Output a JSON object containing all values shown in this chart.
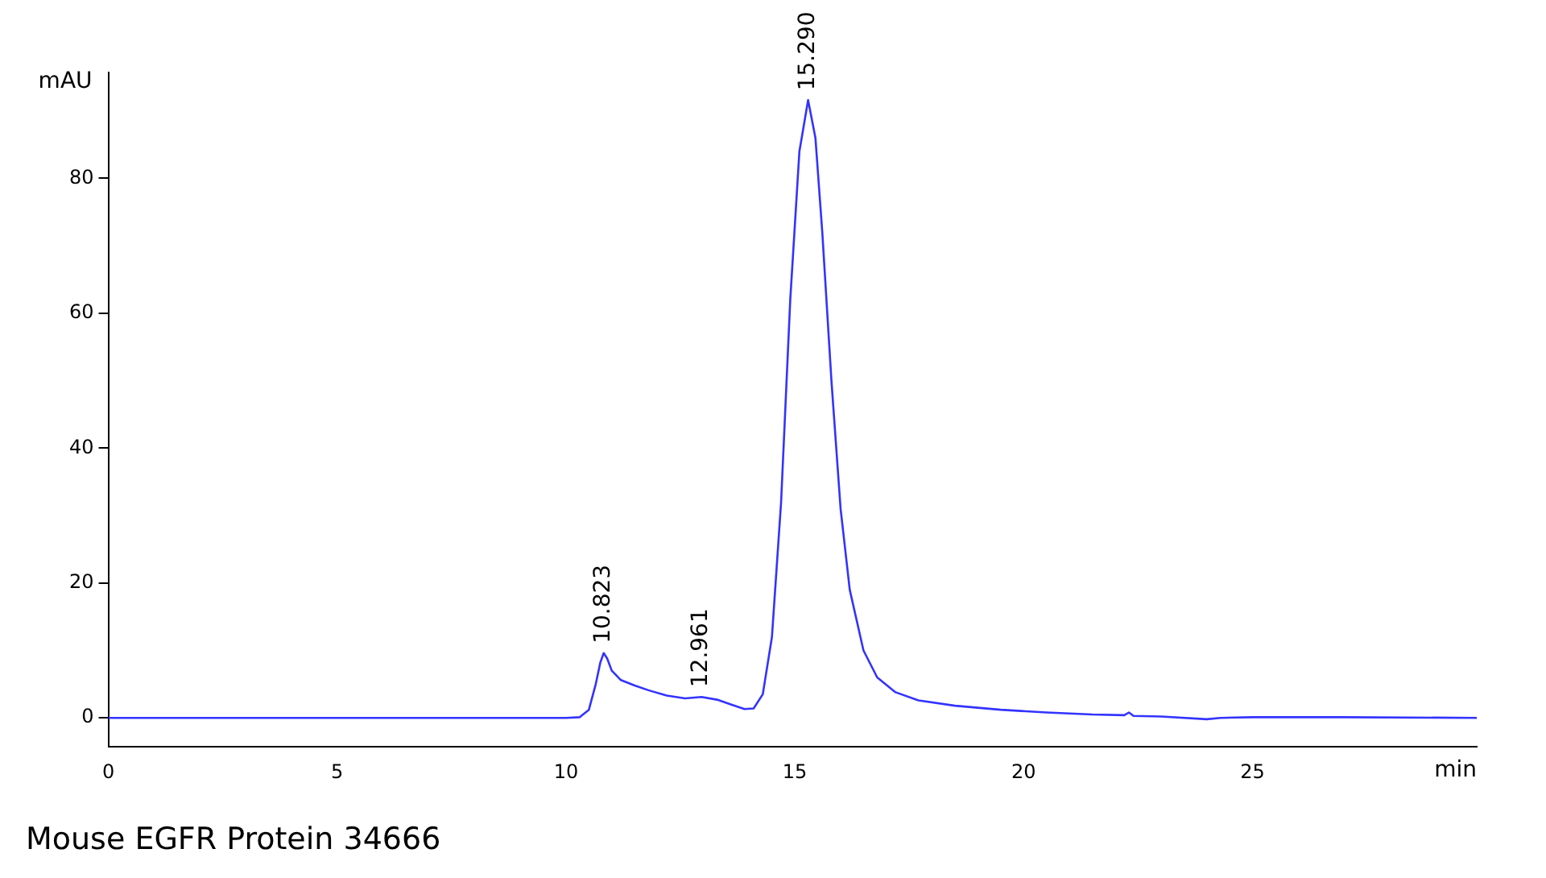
{
  "chart_data": {
    "type": "line",
    "xlabel": "min",
    "ylabel": "mAU",
    "xlim": [
      0,
      29.9
    ],
    "ylim": [
      -4.3,
      95.7
    ],
    "xticks": [
      0,
      5,
      10,
      15,
      20,
      25
    ],
    "yticks": [
      0,
      20,
      40,
      60,
      80
    ],
    "grid": false,
    "legend": false,
    "marker": "none",
    "line_style": "solid",
    "series": [
      {
        "color": "#3333ff",
        "x": [
          0,
          5,
          10,
          10.3,
          10.5,
          10.65,
          10.75,
          10.823,
          10.9,
          11.0,
          11.2,
          11.5,
          11.8,
          12.2,
          12.6,
          12.961,
          13.3,
          13.6,
          13.9,
          14.1,
          14.3,
          14.5,
          14.7,
          14.9,
          15.1,
          15.29,
          15.45,
          15.6,
          15.8,
          16.0,
          16.2,
          16.5,
          16.8,
          17.2,
          17.7,
          18.5,
          19.5,
          20.5,
          21.5,
          22.2,
          22.3,
          22.4,
          23,
          24,
          24.3,
          25,
          27,
          29.9
        ],
        "values": [
          0,
          0,
          0,
          0.1,
          1.2,
          5,
          8.2,
          9.6,
          8.8,
          7,
          5.6,
          4.8,
          4.1,
          3.3,
          2.9,
          3.1,
          2.7,
          2,
          1.3,
          1.4,
          3.5,
          12,
          32,
          62,
          84,
          91.6,
          86,
          72,
          50,
          31,
          19,
          10,
          6,
          3.8,
          2.6,
          1.8,
          1.2,
          0.8,
          0.5,
          0.4,
          0.8,
          0.3,
          0.2,
          -0.2,
          0,
          0.1,
          0.1,
          0
        ]
      }
    ],
    "annotations": [
      {
        "text": "10.823",
        "x": 10.823,
        "y": 9.6
      },
      {
        "text": "12.961",
        "x": 12.961,
        "y": 3.1
      },
      {
        "text": "15.290",
        "x": 15.29,
        "y": 91.6
      },
      "Mouse EGFR Protein 34666"
    ]
  }
}
